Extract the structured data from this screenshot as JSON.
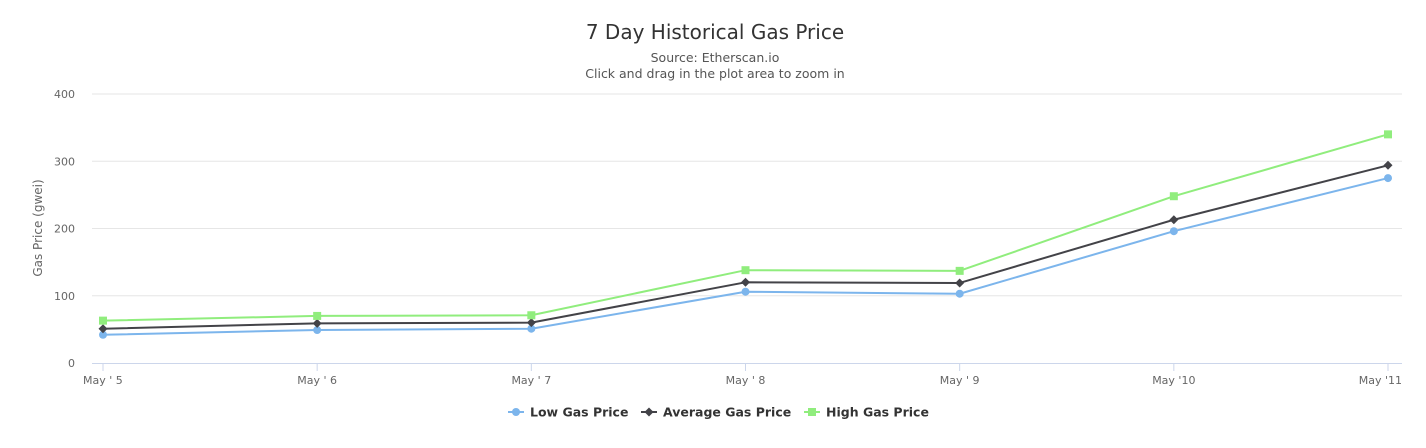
{
  "chart_data": {
    "type": "line",
    "title": "7 Day Historical Gas Price",
    "subtitle": "Source: Etherscan.io",
    "subtitle2": "Click and drag in the plot area to zoom in",
    "xlabel": "",
    "ylabel": "Gas Price (gwei)",
    "ylim": [
      0,
      400
    ],
    "yticks": [
      0,
      100,
      200,
      300,
      400
    ],
    "categories": [
      "May ' 5",
      "May ' 6",
      "May ' 7",
      "May ' 8",
      "May ' 9",
      "May '10",
      "May '11"
    ],
    "grid": true,
    "legend_position": "bottom",
    "series": [
      {
        "name": "Low Gas Price",
        "color": "#7cb5ec",
        "marker": "circle",
        "values": [
          42,
          49,
          51,
          106,
          103,
          196,
          275
        ]
      },
      {
        "name": "Average Gas Price",
        "color": "#434348",
        "marker": "diamond",
        "values": [
          51,
          59,
          60,
          120,
          119,
          213,
          294
        ]
      },
      {
        "name": "High Gas Price",
        "color": "#90ed7d",
        "marker": "square",
        "values": [
          63,
          70,
          71,
          138,
          137,
          248,
          340
        ]
      }
    ]
  }
}
